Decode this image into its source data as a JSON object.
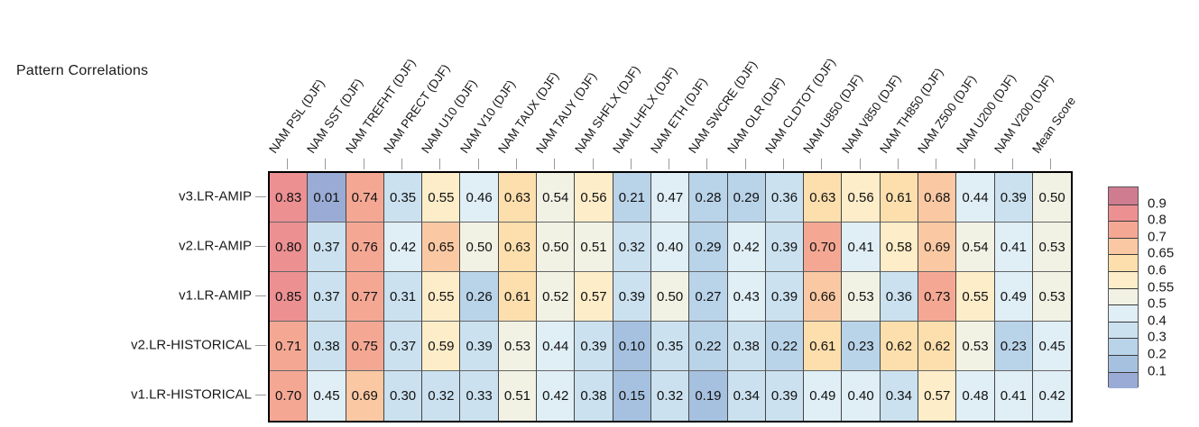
{
  "title": "Pattern Correlations",
  "chart_data": {
    "type": "heatmap",
    "title": "Pattern Correlations",
    "columns": [
      "NAM PSL (DJF)",
      "NAM SST (DJF)",
      "NAM TREFHT (DJF)",
      "NAM PRECT (DJF)",
      "NAM U10 (DJF)",
      "NAM V10 (DJF)",
      "NAM TAUX (DJF)",
      "NAM TAUY (DJF)",
      "NAM SHFLX (DJF)",
      "NAM LHFLX (DJF)",
      "NAM ETH (DJF)",
      "NAM SWCRE (DJF)",
      "NAM OLR (DJF)",
      "NAM CLDTOT (DJF)",
      "NAM U850 (DJF)",
      "NAM V850 (DJF)",
      "NAM TH850 (DJF)",
      "NAM Z500 (DJF)",
      "NAM U200 (DJF)",
      "NAM V200 (DJF)",
      "Mean Score"
    ],
    "rows": [
      "v3.LR-AMIP",
      "v2.LR-AMIP",
      "v1.LR-AMIP",
      "v2.LR-HISTORICAL",
      "v1.LR-HISTORICAL"
    ],
    "values": [
      [
        0.83,
        0.01,
        0.74,
        0.35,
        0.55,
        0.46,
        0.63,
        0.54,
        0.56,
        0.21,
        0.47,
        0.28,
        0.29,
        0.36,
        0.63,
        0.56,
        0.61,
        0.68,
        0.44,
        0.39,
        0.5
      ],
      [
        0.8,
        0.37,
        0.76,
        0.42,
        0.65,
        0.5,
        0.63,
        0.5,
        0.51,
        0.32,
        0.4,
        0.29,
        0.42,
        0.39,
        0.7,
        0.41,
        0.58,
        0.69,
        0.54,
        0.41,
        0.53
      ],
      [
        0.85,
        0.37,
        0.77,
        0.31,
        0.55,
        0.26,
        0.61,
        0.52,
        0.57,
        0.39,
        0.5,
        0.27,
        0.43,
        0.39,
        0.66,
        0.53,
        0.36,
        0.73,
        0.55,
        0.49,
        0.53
      ],
      [
        0.71,
        0.38,
        0.75,
        0.37,
        0.59,
        0.39,
        0.53,
        0.44,
        0.39,
        0.1,
        0.35,
        0.22,
        0.38,
        0.22,
        0.61,
        0.23,
        0.62,
        0.62,
        0.53,
        0.23,
        0.45
      ],
      [
        0.7,
        0.45,
        0.69,
        0.3,
        0.32,
        0.33,
        0.51,
        0.42,
        0.38,
        0.15,
        0.32,
        0.19,
        0.34,
        0.39,
        0.49,
        0.4,
        0.34,
        0.57,
        0.48,
        0.41,
        0.42
      ]
    ],
    "value_decimals": 2,
    "grid_on": true,
    "legend_position": "right",
    "colorbar": {
      "tick_labels": [
        "0.9",
        "0.8",
        "0.7",
        "0.65",
        "0.6",
        "0.55",
        "0.5",
        "0.4",
        "0.3",
        "0.2",
        "0.1"
      ],
      "thresholds_desc": [
        0.9,
        0.8,
        0.7,
        0.65,
        0.6,
        0.55,
        0.5,
        0.4,
        0.3,
        0.2,
        0.1
      ],
      "band_colors_top_to_bottom": [
        "#cf7b90",
        "#ec9092",
        "#f4a894",
        "#fac9a4",
        "#fcdfad",
        "#fdedc9",
        "#f1f2e4",
        "#e0eef5",
        "#cbe1ef",
        "#b9d3e9",
        "#a6c1df",
        "#9aacd5"
      ]
    }
  }
}
